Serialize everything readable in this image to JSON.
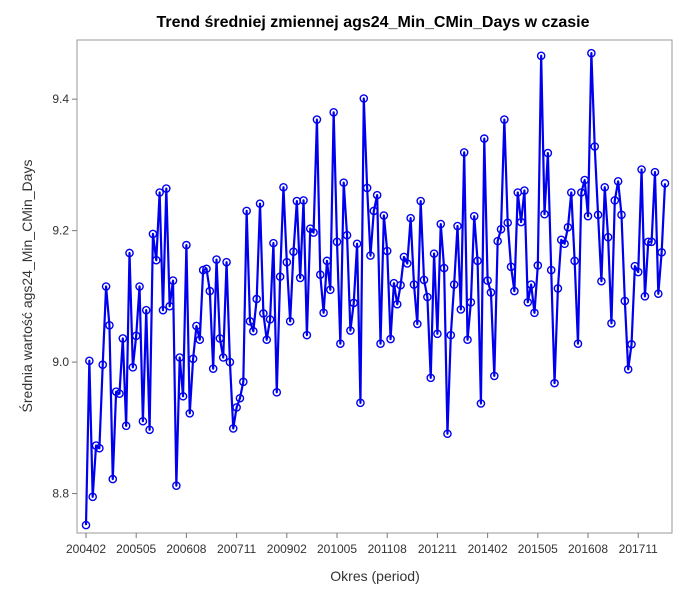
{
  "chart_data": {
    "type": "line",
    "title": "Trend średniej zmiennej ags24_Min_CMin_Days w czasie",
    "xlabel": "Okres (period)",
    "ylabel": "Średnia wartość ags24_Min_CMin_Days",
    "x_ticks": [
      "200402",
      "200505",
      "200608",
      "200711",
      "200902",
      "201005",
      "201108",
      "201211",
      "201402",
      "201505",
      "201608",
      "201711"
    ],
    "ylim": [
      8.74,
      9.49
    ],
    "y_ticks": [
      8.8,
      9.0,
      9.2,
      9.4
    ],
    "grid": false,
    "line_color": "#0000ee",
    "series": [
      {
        "values": [
          8.752,
          9.002,
          8.795,
          8.873,
          8.869,
          8.996,
          9.115,
          9.056,
          8.822,
          8.955,
          8.952,
          9.036,
          8.903,
          9.166,
          8.992,
          9.04,
          9.115,
          8.91,
          9.079,
          8.897,
          9.195,
          9.155,
          9.258,
          9.079,
          9.264,
          9.085,
          9.124,
          8.812,
          9.007,
          8.948,
          9.178,
          8.922,
          9.005,
          9.055,
          9.034,
          9.14,
          9.142,
          9.108,
          8.99,
          9.156,
          9.036,
          9.007,
          9.152,
          9.0,
          8.899,
          8.931,
          8.945,
          8.97,
          9.23,
          9.062,
          9.047,
          9.096,
          9.241,
          9.074,
          9.034,
          9.065,
          9.181,
          8.954,
          9.13,
          9.266,
          9.152,
          9.062,
          9.168,
          9.245,
          9.128,
          9.246,
          9.041,
          9.203,
          9.197,
          9.369,
          9.133,
          9.075,
          9.154,
          9.11,
          9.38,
          9.183,
          9.028,
          9.273,
          9.193,
          9.048,
          9.09,
          9.18,
          8.938,
          9.401,
          9.265,
          9.162,
          9.23,
          9.254,
          9.028,
          9.223,
          9.169,
          9.035,
          9.12,
          9.088,
          9.117,
          9.16,
          9.15,
          9.219,
          9.118,
          9.058,
          9.245,
          9.125,
          9.099,
          8.976,
          9.165,
          9.043,
          9.21,
          9.143,
          8.891,
          9.041,
          9.118,
          9.207,
          9.08,
          9.319,
          9.034,
          9.091,
          9.222,
          9.154,
          8.937,
          9.34,
          9.124,
          9.106,
          8.979,
          9.184,
          9.202,
          9.369,
          9.212,
          9.145,
          9.108,
          9.258,
          9.213,
          9.261,
          9.091,
          9.118,
          9.075,
          9.147,
          9.466,
          9.225,
          9.318,
          9.14,
          8.968,
          9.112,
          9.186,
          9.18,
          9.205,
          9.258,
          9.154,
          9.028,
          9.258,
          9.277,
          9.222,
          9.47,
          9.328,
          9.224,
          9.123,
          9.266,
          9.19,
          9.059,
          9.246,
          9.275,
          9.224,
          9.093,
          8.989,
          9.027,
          9.146,
          9.137,
          9.293,
          9.1,
          9.183,
          9.183,
          9.289,
          9.104,
          9.167,
          9.272
        ]
      }
    ]
  }
}
